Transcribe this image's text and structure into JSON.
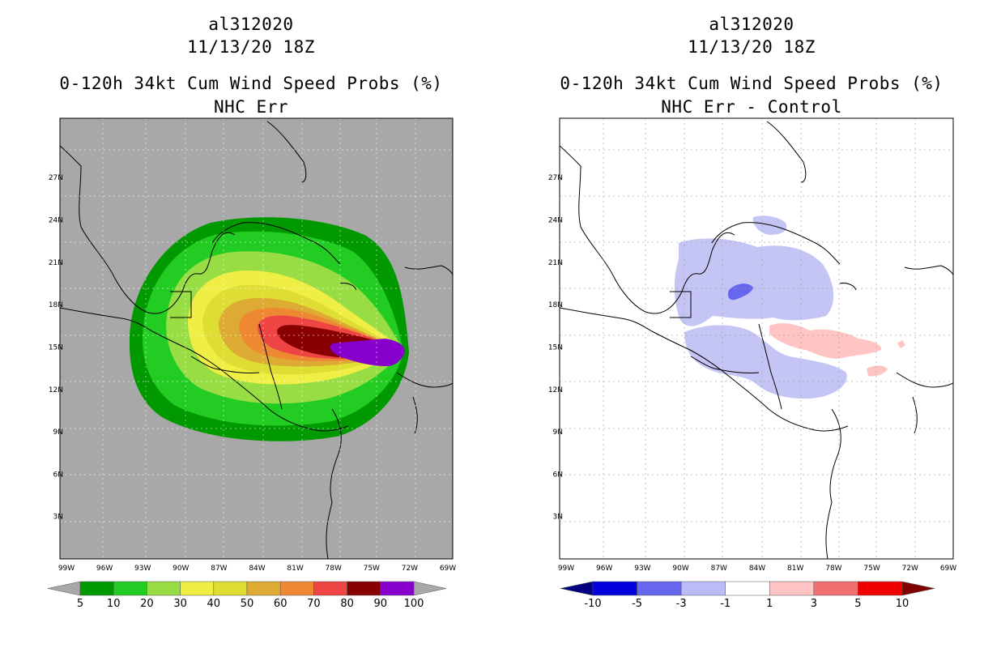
{
  "left_panel": {
    "storm_id": "al312020",
    "datetime": "11/13/20 18Z",
    "product": "0-120h 34kt Cum Wind Speed Probs (%)",
    "subtitle": "NHC Err",
    "background_color": "#a8a8a8",
    "colorbar": {
      "labels": [
        "5",
        "10",
        "20",
        "30",
        "40",
        "50",
        "60",
        "70",
        "80",
        "90",
        "100"
      ],
      "colors": [
        "#009900",
        "#22cc22",
        "#99dd44",
        "#eeee44",
        "#dddd33",
        "#ddaa33",
        "#ee8833",
        "#ee4444",
        "#880000",
        "#8800cc"
      ],
      "end_color": "#a8a8a8"
    }
  },
  "right_panel": {
    "storm_id": "al312020",
    "datetime": "11/13/20 18Z",
    "product": "0-120h 34kt Cum Wind Speed Probs (%)",
    "subtitle": "NHC Err - Control",
    "background_color": "#ffffff",
    "colorbar": {
      "labels": [
        "-10",
        "-5",
        "-3",
        "-1",
        "1",
        "3",
        "5",
        "10"
      ],
      "colors": [
        "#0000dd",
        "#6666ee",
        "#bbbbf5",
        "#ffffff",
        "#ffc4c4",
        "#f07070",
        "#ee0000"
      ],
      "low_end_color": "#000080",
      "high_end_color": "#800000"
    }
  },
  "map": {
    "lon_range": [
      -99,
      -69
    ],
    "lat_range": [
      0,
      30
    ],
    "lon_tick_labels": [
      "99W",
      "96W",
      "93W",
      "90W",
      "87W",
      "84W",
      "81W",
      "78W",
      "75W",
      "72W",
      "69W"
    ],
    "lat_tick_labels": [
      "3N",
      "6N",
      "9N",
      "12N",
      "15N",
      "18N",
      "21N",
      "24N",
      "27N"
    ]
  }
}
